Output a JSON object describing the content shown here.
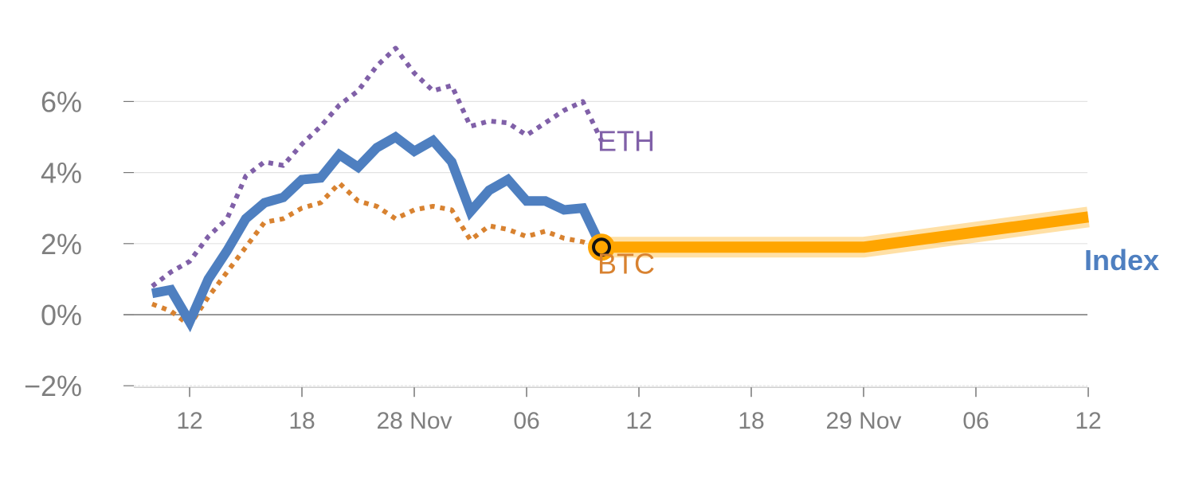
{
  "chart_data": {
    "type": "line",
    "title": "",
    "xlabel": "",
    "ylabel": "",
    "ylim": [
      -2,
      8
    ],
    "grid": true,
    "legend": "inline-labels",
    "y_ticks": [
      "−2%",
      "0%",
      "2%",
      "4%",
      "6%"
    ],
    "y_tick_values": [
      -2,
      0,
      2,
      4,
      6
    ],
    "x_ticks": [
      "12",
      "18",
      "28 Nov",
      "06",
      "12",
      "18",
      "29 Nov",
      "06",
      "12"
    ],
    "x_tick_positions": [
      0,
      6,
      12,
      18,
      24,
      30,
      36,
      42,
      48
    ],
    "colors": {
      "index": "#4e7fc0",
      "btc": "#d88230",
      "eth": "#8060a8",
      "projection": "#ffa500",
      "grid": "#e3e3e3",
      "zero": "#777777",
      "tick": "#7f7f7f"
    },
    "series": [
      {
        "key": "index",
        "name": "Index",
        "style": "solid",
        "x": [
          -2,
          -1,
          0,
          1,
          2,
          3,
          4,
          5,
          6,
          7,
          8,
          9,
          10,
          11,
          12,
          13,
          14,
          15,
          16,
          17,
          18,
          19,
          20,
          21,
          22
        ],
        "values": [
          0.6,
          0.7,
          -0.2,
          1.0,
          1.8,
          2.7,
          3.15,
          3.3,
          3.8,
          3.85,
          4.5,
          4.15,
          4.7,
          5.0,
          4.6,
          4.9,
          4.3,
          2.9,
          3.5,
          3.8,
          3.2,
          3.2,
          2.95,
          3.0,
          1.9
        ]
      },
      {
        "key": "btc",
        "name": "BTC",
        "style": "dotted",
        "x": [
          -2,
          -1,
          0,
          1,
          2,
          3,
          4,
          5,
          6,
          7,
          8,
          9,
          10,
          11,
          12,
          13,
          14,
          15,
          16,
          17,
          18,
          19,
          20,
          21,
          22
        ],
        "values": [
          0.3,
          0.1,
          -0.3,
          0.5,
          1.2,
          1.9,
          2.6,
          2.7,
          3.0,
          3.15,
          3.7,
          3.2,
          3.05,
          2.7,
          2.95,
          3.05,
          2.95,
          2.1,
          2.5,
          2.4,
          2.2,
          2.35,
          2.15,
          2.05,
          1.85
        ]
      },
      {
        "key": "eth",
        "name": "ETH",
        "style": "dotted",
        "x": [
          -2,
          -1,
          0,
          1,
          2,
          3,
          4,
          5,
          6,
          7,
          8,
          9,
          10,
          11,
          12,
          13,
          14,
          15,
          16,
          17,
          18,
          19,
          20,
          21,
          22
        ],
        "values": [
          0.8,
          1.2,
          1.5,
          2.2,
          2.7,
          3.9,
          4.3,
          4.2,
          4.8,
          5.3,
          5.9,
          6.3,
          7.0,
          7.5,
          6.8,
          6.3,
          6.45,
          5.3,
          5.45,
          5.4,
          5.05,
          5.4,
          5.75,
          6.0,
          4.9
        ]
      },
      {
        "key": "projection",
        "style": "thick",
        "x": [
          22,
          36,
          48
        ],
        "values": [
          1.9,
          1.9,
          2.75
        ]
      }
    ],
    "labels": [
      {
        "series": "eth",
        "text": "ETH",
        "x": 22,
        "y": 4.9
      },
      {
        "series": "btc",
        "text": "BTC",
        "x": 22,
        "y": 1.45
      },
      {
        "series": "index",
        "text": "Index",
        "x": 48,
        "y": 1.55
      }
    ],
    "marker": {
      "x": 22,
      "y": 1.9
    }
  }
}
